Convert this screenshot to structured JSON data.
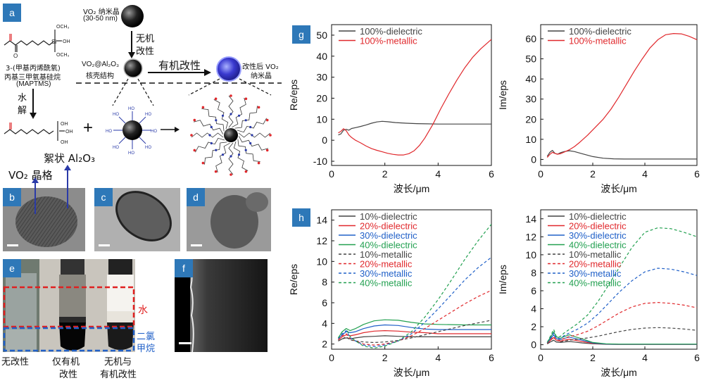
{
  "panels": {
    "a": "a",
    "b": "b",
    "c": "c",
    "d": "d",
    "e": "e",
    "f": "f",
    "g": "g",
    "h": "h"
  },
  "schematic": {
    "maptms_name_1": "3-(甲基丙烯酰氧)",
    "maptms_name_2": "丙基三甲氧基硅烷",
    "maptms_abbr": "(MAPTMS)",
    "vo2_nano": "VO₂ 纳米晶",
    "vo2_size": "(30-50 nm)",
    "inorganic_mod_1": "无机",
    "inorganic_mod_2": "改性",
    "hydrolysis_1": "水",
    "hydrolysis_2": "解",
    "coreshell_1": "VO₂@Al₂O₃",
    "coreshell_2": "核壳结构",
    "organic_mod": "有机改性",
    "modified_1": "改性后 VO₂",
    "modified_2": "纳米晶",
    "plus": "+",
    "floc_al2o3": "絮状 Al₂O₃",
    "vo2_lattice": "VO₂ 晶格",
    "ome_top": "OCH₃",
    "ome_bot": "OCH₃",
    "si": "Si",
    "o": "O",
    "oh": "OH",
    "ho": "HO"
  },
  "photo_e": {
    "water": "水",
    "dcm_1": "二氯",
    "dcm_2": "甲烷",
    "caption_1": "无改性",
    "caption_2a": "仅有机",
    "caption_2b": "改性",
    "caption_3a": "无机与",
    "caption_3b": "有机改性"
  },
  "colors": {
    "dielectric": "#444444",
    "metallic": "#e0282c",
    "c10": "#444444",
    "c20": "#e0282c",
    "c30": "#2060c8",
    "c40": "#22a050",
    "panel_label": "#2e78b8",
    "arrow_blue": "#2a3aa8"
  },
  "chart_data": [
    {
      "id": "g-left",
      "type": "line",
      "xlabel": "波长/μm",
      "ylabel": "Re/eps",
      "xlim": [
        0,
        6
      ],
      "ylim": [
        -12,
        55
      ],
      "xticks": [
        0,
        2,
        4,
        6
      ],
      "yticks": [
        -10,
        0,
        10,
        20,
        30,
        40,
        50
      ],
      "legend": "top-left",
      "series": [
        {
          "name": "100%-dielectric",
          "style": "solid",
          "color": "dielectric",
          "x": [
            0.25,
            0.35,
            0.45,
            0.55,
            0.65,
            0.75,
            0.9,
            1.1,
            1.3,
            1.5,
            1.7,
            1.9,
            2.1,
            2.4,
            2.8,
            3.2,
            3.6,
            4.0,
            4.5,
            5.0,
            5.5,
            6.0
          ],
          "y": [
            2.5,
            3.0,
            4.8,
            5.2,
            4.8,
            5.6,
            6.0,
            6.6,
            7.3,
            8.1,
            8.7,
            9.0,
            8.8,
            8.4,
            8.1,
            7.9,
            7.8,
            7.7,
            7.7,
            7.7,
            7.7,
            7.7
          ]
        },
        {
          "name": "100%-metallic",
          "style": "solid",
          "color": "metallic",
          "x": [
            0.25,
            0.35,
            0.45,
            0.55,
            0.65,
            0.75,
            0.9,
            1.1,
            1.3,
            1.5,
            1.7,
            1.9,
            2.1,
            2.3,
            2.5,
            2.7,
            2.9,
            3.1,
            3.3,
            3.5,
            3.8,
            4.1,
            4.4,
            4.7,
            5.0,
            5.3,
            5.6,
            6.0
          ],
          "y": [
            3.5,
            4.2,
            5.5,
            4.5,
            2.5,
            1.3,
            0.0,
            -1.3,
            -2.8,
            -4.0,
            -4.8,
            -5.5,
            -6.2,
            -6.7,
            -7.0,
            -7.0,
            -6.4,
            -5.0,
            -2.5,
            1.0,
            7.5,
            15.0,
            22.0,
            28.5,
            34.5,
            39.5,
            43.5,
            48.0
          ]
        }
      ]
    },
    {
      "id": "g-right",
      "type": "line",
      "xlabel": "波长/μm",
      "ylabel": "Im/eps",
      "xlim": [
        0,
        6
      ],
      "ylim": [
        -3,
        67
      ],
      "xticks": [
        0,
        2,
        4,
        6
      ],
      "yticks": [
        0,
        10,
        20,
        30,
        40,
        50,
        60
      ],
      "legend": "top-left",
      "series": [
        {
          "name": "100%-dielectric",
          "style": "solid",
          "color": "dielectric",
          "x": [
            0.25,
            0.35,
            0.45,
            0.55,
            0.65,
            0.75,
            0.9,
            1.1,
            1.3,
            1.6,
            2.0,
            2.4,
            2.8,
            3.2,
            3.8,
            4.5,
            5.2,
            6.0
          ],
          "y": [
            1.5,
            3.5,
            4.5,
            3.0,
            2.6,
            3.3,
            3.9,
            4.3,
            3.9,
            2.8,
            1.4,
            0.6,
            0.3,
            0.2,
            0.2,
            0.2,
            0.2,
            0.2
          ]
        },
        {
          "name": "100%-metallic",
          "style": "solid",
          "color": "metallic",
          "x": [
            0.25,
            0.35,
            0.45,
            0.55,
            0.65,
            0.75,
            0.9,
            1.1,
            1.3,
            1.5,
            1.8,
            2.1,
            2.4,
            2.7,
            3.0,
            3.3,
            3.6,
            3.9,
            4.2,
            4.5,
            4.8,
            5.1,
            5.4,
            5.7,
            6.0
          ],
          "y": [
            1.0,
            2.5,
            3.5,
            3.0,
            2.6,
            2.8,
            3.6,
            4.8,
            6.4,
            8.5,
            12.0,
            16.0,
            20.0,
            25.0,
            31.0,
            37.5,
            44.0,
            50.0,
            55.5,
            59.5,
            62.0,
            62.6,
            62.4,
            61.2,
            59.5
          ]
        }
      ]
    },
    {
      "id": "h-left",
      "type": "line",
      "xlabel": "波长/μm",
      "ylabel": "Re/eps",
      "xlim": [
        0,
        6
      ],
      "ylim": [
        1.5,
        15
      ],
      "xticks": [
        0,
        2,
        4,
        6
      ],
      "yticks": [
        2,
        4,
        6,
        8,
        10,
        12,
        14
      ],
      "legend": "top-left",
      "series": [
        {
          "name": "10%-dielectric",
          "style": "solid",
          "color": "c10",
          "x": [
            0.25,
            0.4,
            0.55,
            0.7,
            0.9,
            1.2,
            1.6,
            2.0,
            2.5,
            3.0,
            3.5,
            4.0,
            5.0,
            6.0
          ],
          "y": [
            2.3,
            2.5,
            2.6,
            2.5,
            2.6,
            2.7,
            2.75,
            2.8,
            2.75,
            2.7,
            2.7,
            2.7,
            2.7,
            2.7
          ]
        },
        {
          "name": "20%-dielectric",
          "style": "solid",
          "color": "c20",
          "x": [
            0.25,
            0.4,
            0.55,
            0.7,
            0.9,
            1.2,
            1.6,
            2.0,
            2.5,
            3.0,
            3.5,
            4.0,
            5.0,
            6.0
          ],
          "y": [
            2.4,
            2.7,
            2.9,
            2.8,
            2.9,
            3.1,
            3.25,
            3.3,
            3.25,
            3.15,
            3.1,
            3.0,
            3.0,
            3.0
          ]
        },
        {
          "name": "30%-dielectric",
          "style": "solid",
          "color": "c30",
          "x": [
            0.25,
            0.4,
            0.55,
            0.7,
            0.9,
            1.2,
            1.6,
            2.0,
            2.5,
            3.0,
            3.5,
            4.0,
            5.0,
            6.0
          ],
          "y": [
            2.5,
            2.9,
            3.2,
            3.1,
            3.2,
            3.5,
            3.75,
            3.85,
            3.8,
            3.6,
            3.45,
            3.4,
            3.4,
            3.4
          ]
        },
        {
          "name": "40%-dielectric",
          "style": "solid",
          "color": "c40",
          "x": [
            0.25,
            0.4,
            0.55,
            0.7,
            0.9,
            1.2,
            1.6,
            2.0,
            2.5,
            3.0,
            3.5,
            4.0,
            5.0,
            6.0
          ],
          "y": [
            2.6,
            3.2,
            3.5,
            3.3,
            3.5,
            3.9,
            4.25,
            4.35,
            4.3,
            4.1,
            3.95,
            3.9,
            3.85,
            3.85
          ]
        },
        {
          "name": "10%-metallic",
          "style": "dashed",
          "color": "c10",
          "x": [
            0.25,
            0.4,
            0.55,
            0.7,
            0.9,
            1.2,
            1.6,
            2.0,
            2.5,
            3.0,
            3.5,
            4.0,
            4.5,
            5.0,
            5.5,
            6.0
          ],
          "y": [
            2.3,
            2.5,
            2.7,
            2.4,
            2.3,
            2.2,
            2.15,
            2.2,
            2.35,
            2.6,
            2.9,
            3.2,
            3.5,
            3.8,
            4.05,
            4.3
          ]
        },
        {
          "name": "20%-metallic",
          "style": "dashed",
          "color": "c20",
          "x": [
            0.25,
            0.4,
            0.55,
            0.7,
            0.9,
            1.2,
            1.6,
            2.0,
            2.5,
            3.0,
            3.5,
            4.0,
            4.5,
            5.0,
            5.5,
            6.0
          ],
          "y": [
            2.4,
            2.8,
            3.0,
            2.5,
            2.3,
            2.0,
            1.9,
            2.0,
            2.3,
            2.8,
            3.5,
            4.3,
            5.1,
            5.9,
            6.6,
            7.2
          ]
        },
        {
          "name": "30%-metallic",
          "style": "dashed",
          "color": "c30",
          "x": [
            0.25,
            0.4,
            0.55,
            0.7,
            0.9,
            1.2,
            1.6,
            2.0,
            2.5,
            3.0,
            3.5,
            4.0,
            4.5,
            5.0,
            5.5,
            6.0
          ],
          "y": [
            2.5,
            3.0,
            3.3,
            2.6,
            2.3,
            1.9,
            1.75,
            1.9,
            2.3,
            3.0,
            4.1,
            5.4,
            6.8,
            8.2,
            9.4,
            10.4
          ]
        },
        {
          "name": "40%-metallic",
          "style": "dashed",
          "color": "c40",
          "x": [
            0.25,
            0.4,
            0.55,
            0.7,
            0.9,
            1.2,
            1.6,
            2.0,
            2.5,
            3.0,
            3.5,
            4.0,
            4.5,
            5.0,
            5.5,
            6.0
          ],
          "y": [
            2.6,
            3.2,
            3.5,
            2.7,
            2.3,
            1.8,
            1.6,
            1.8,
            2.3,
            3.2,
            4.6,
            6.3,
            8.2,
            10.2,
            12.0,
            13.6
          ]
        }
      ]
    },
    {
      "id": "h-right",
      "type": "line",
      "xlabel": "波长/μm",
      "ylabel": "Im/eps",
      "xlim": [
        0,
        6
      ],
      "ylim": [
        -0.5,
        15
      ],
      "xticks": [
        0,
        2,
        4,
        6
      ],
      "yticks": [
        0,
        2,
        4,
        6,
        8,
        10,
        12,
        14
      ],
      "legend": "top-left",
      "series": [
        {
          "name": "10%-dielectric",
          "style": "solid",
          "color": "c10",
          "x": [
            0.25,
            0.4,
            0.5,
            0.6,
            0.75,
            0.9,
            1.1,
            1.3,
            1.6,
            2.0,
            2.5,
            3.0,
            4.0,
            5.0,
            6.0
          ],
          "y": [
            0.1,
            0.35,
            0.5,
            0.3,
            0.25,
            0.3,
            0.35,
            0.3,
            0.2,
            0.1,
            0.05,
            0.03,
            0.03,
            0.03,
            0.03
          ]
        },
        {
          "name": "20%-dielectric",
          "style": "solid",
          "color": "c20",
          "x": [
            0.25,
            0.4,
            0.5,
            0.6,
            0.75,
            0.9,
            1.1,
            1.3,
            1.6,
            2.0,
            2.5,
            3.0,
            4.0,
            5.0,
            6.0
          ],
          "y": [
            0.15,
            0.55,
            0.8,
            0.5,
            0.4,
            0.5,
            0.6,
            0.5,
            0.35,
            0.15,
            0.06,
            0.04,
            0.04,
            0.04,
            0.04
          ]
        },
        {
          "name": "30%-dielectric",
          "style": "solid",
          "color": "c30",
          "x": [
            0.25,
            0.4,
            0.5,
            0.6,
            0.75,
            0.9,
            1.1,
            1.3,
            1.6,
            2.0,
            2.5,
            3.0,
            4.0,
            5.0,
            6.0
          ],
          "y": [
            0.2,
            0.75,
            1.1,
            0.7,
            0.55,
            0.7,
            0.85,
            0.7,
            0.5,
            0.2,
            0.08,
            0.05,
            0.05,
            0.05,
            0.05
          ]
        },
        {
          "name": "40%-dielectric",
          "style": "solid",
          "color": "c40",
          "x": [
            0.25,
            0.4,
            0.5,
            0.6,
            0.75,
            0.9,
            1.1,
            1.3,
            1.6,
            2.0,
            2.5,
            3.0,
            4.0,
            5.0,
            6.0
          ],
          "y": [
            0.25,
            0.95,
            1.4,
            0.9,
            0.7,
            0.9,
            1.1,
            0.9,
            0.65,
            0.25,
            0.1,
            0.06,
            0.06,
            0.06,
            0.06
          ]
        },
        {
          "name": "10%-metallic",
          "style": "dashed",
          "color": "c10",
          "x": [
            0.25,
            0.4,
            0.5,
            0.6,
            0.75,
            0.9,
            1.1,
            1.4,
            1.8,
            2.2,
            2.6,
            3.0,
            3.5,
            4.0,
            4.5,
            5.0,
            5.5,
            6.0
          ],
          "y": [
            0.1,
            0.35,
            0.5,
            0.3,
            0.3,
            0.4,
            0.5,
            0.6,
            0.75,
            0.95,
            1.2,
            1.45,
            1.7,
            1.85,
            1.9,
            1.85,
            1.75,
            1.6
          ]
        },
        {
          "name": "20%-metallic",
          "style": "dashed",
          "color": "c20",
          "x": [
            0.25,
            0.4,
            0.5,
            0.6,
            0.75,
            0.9,
            1.1,
            1.4,
            1.8,
            2.2,
            2.6,
            3.0,
            3.5,
            4.0,
            4.5,
            5.0,
            5.5,
            6.0
          ],
          "y": [
            0.15,
            0.6,
            0.9,
            0.5,
            0.5,
            0.7,
            0.9,
            1.1,
            1.5,
            2.1,
            2.8,
            3.5,
            4.2,
            4.6,
            4.7,
            4.6,
            4.4,
            4.1
          ]
        },
        {
          "name": "30%-metallic",
          "style": "dashed",
          "color": "c30",
          "x": [
            0.25,
            0.4,
            0.5,
            0.6,
            0.75,
            0.9,
            1.1,
            1.4,
            1.8,
            2.2,
            2.6,
            3.0,
            3.5,
            4.0,
            4.5,
            5.0,
            5.5,
            6.0
          ],
          "y": [
            0.2,
            0.85,
            1.3,
            0.7,
            0.7,
            1.0,
            1.3,
            1.7,
            2.4,
            3.4,
            4.6,
            5.8,
            7.1,
            8.1,
            8.5,
            8.4,
            8.1,
            7.7
          ]
        },
        {
          "name": "40%-metallic",
          "style": "dashed",
          "color": "c40",
          "x": [
            0.25,
            0.4,
            0.5,
            0.6,
            0.75,
            0.9,
            1.1,
            1.4,
            1.8,
            2.2,
            2.6,
            3.0,
            3.5,
            4.0,
            4.5,
            5.0,
            5.5,
            6.0
          ],
          "y": [
            0.25,
            1.1,
            1.7,
            0.9,
            0.9,
            1.3,
            1.7,
            2.3,
            3.3,
            4.8,
            6.6,
            8.5,
            10.8,
            12.5,
            13.0,
            12.9,
            12.5,
            12.0
          ]
        }
      ]
    }
  ]
}
